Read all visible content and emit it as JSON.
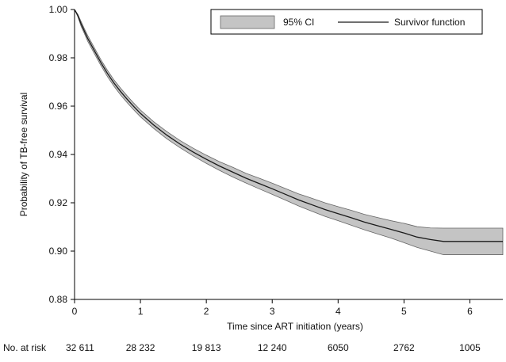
{
  "chart_data": {
    "type": "line",
    "xlabel": "Time since ART initiation (years)",
    "ylabel": "Probability of TB-free survival",
    "xlim": [
      0,
      6.5
    ],
    "ylim": [
      0.88,
      1.0
    ],
    "x_ticks": [
      "0",
      "1",
      "2",
      "3",
      "4",
      "5",
      "6"
    ],
    "y_ticks": [
      "0.88",
      "0.90",
      "0.92",
      "0.94",
      "0.96",
      "0.98",
      "1.00"
    ],
    "grid": false,
    "legend": {
      "placement": "top-right",
      "ci_label": "95% CI",
      "line_label": "Survivor function"
    },
    "series": [
      {
        "name": "Survivor function",
        "x": [
          0,
          0.05,
          0.1,
          0.15,
          0.2,
          0.3,
          0.4,
          0.5,
          0.6,
          0.7,
          0.8,
          0.9,
          1.0,
          1.2,
          1.4,
          1.6,
          1.8,
          2.0,
          2.2,
          2.4,
          2.6,
          2.8,
          3.0,
          3.2,
          3.4,
          3.6,
          3.8,
          4.0,
          4.2,
          4.4,
          4.6,
          4.8,
          5.0,
          5.2,
          5.4,
          5.6,
          5.8,
          6.0,
          6.2,
          6.5
        ],
        "y": [
          1.0,
          0.9975,
          0.994,
          0.991,
          0.988,
          0.983,
          0.978,
          0.9735,
          0.9695,
          0.966,
          0.9628,
          0.9598,
          0.957,
          0.9522,
          0.948,
          0.9443,
          0.941,
          0.938,
          0.9352,
          0.9327,
          0.9302,
          0.928,
          0.9258,
          0.9235,
          0.9212,
          0.9192,
          0.9172,
          0.9155,
          0.9138,
          0.912,
          0.9105,
          0.909,
          0.9075,
          0.9058,
          0.9048,
          0.904,
          0.904,
          0.904,
          0.904,
          0.904
        ],
        "ci_lower": [
          1.0,
          0.997,
          0.993,
          0.99,
          0.9868,
          0.9818,
          0.9768,
          0.9722,
          0.9682,
          0.9646,
          0.9614,
          0.9584,
          0.9556,
          0.9508,
          0.9465,
          0.9428,
          0.9394,
          0.9363,
          0.9334,
          0.9307,
          0.9282,
          0.9258,
          0.9235,
          0.9211,
          0.9187,
          0.9165,
          0.9144,
          0.9126,
          0.9107,
          0.9088,
          0.9071,
          0.9054,
          0.9035,
          0.9015,
          0.9,
          0.8985,
          0.8985,
          0.8985,
          0.8985,
          0.8985
        ],
        "ci_upper": [
          1.0,
          0.998,
          0.995,
          0.992,
          0.9892,
          0.9842,
          0.9792,
          0.9748,
          0.9708,
          0.9674,
          0.9642,
          0.9612,
          0.9584,
          0.9536,
          0.9495,
          0.9458,
          0.9426,
          0.9397,
          0.937,
          0.9347,
          0.9322,
          0.9302,
          0.9281,
          0.9259,
          0.9237,
          0.9219,
          0.92,
          0.9184,
          0.9169,
          0.9152,
          0.9139,
          0.9126,
          0.9115,
          0.9101,
          0.9096,
          0.9095,
          0.9095,
          0.9095,
          0.9095,
          0.9095
        ]
      }
    ],
    "risk_table": {
      "label": "No. at risk",
      "x": [
        0,
        1,
        2,
        3,
        4,
        5,
        6
      ],
      "values": [
        "32 611",
        "28 232",
        "19 813",
        "12 240",
        "6050",
        "2762",
        "1005"
      ]
    }
  },
  "colors": {
    "ci_fill": "#c4c4c4",
    "ci_edge": "#666666",
    "line": "#1a1a1a",
    "axis": "#000000"
  }
}
